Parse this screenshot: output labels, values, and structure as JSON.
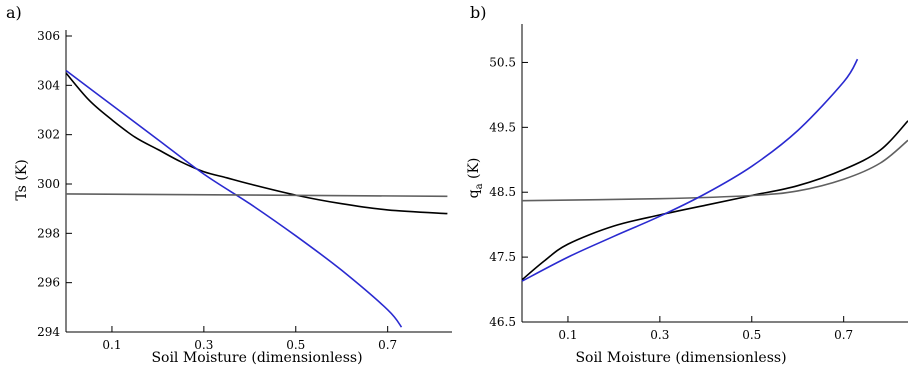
{
  "chart_data": [
    {
      "type": "line",
      "panel_label": "a)",
      "xlabel": "Soil Moisture (dimensionless)",
      "ylabel": "Ts (K)",
      "xlim": [
        0.0,
        0.84
      ],
      "ylim": [
        294,
        306
      ],
      "xticks": [
        "0.1",
        "0.3",
        "0.5",
        "0.7"
      ],
      "yticks": [
        "294",
        "296",
        "298",
        "300",
        "302",
        "304",
        "306"
      ],
      "xtick_values": [
        0.1,
        0.3,
        0.5,
        0.7
      ],
      "ytick_values": [
        294,
        296,
        298,
        300,
        302,
        304,
        306
      ],
      "series": [
        {
          "color": "#000000",
          "x": [
            0.0,
            0.05,
            0.1,
            0.15,
            0.2,
            0.25,
            0.3,
            0.35,
            0.4,
            0.5,
            0.6,
            0.7,
            0.83
          ],
          "y": [
            304.5,
            303.4,
            302.6,
            301.9,
            301.4,
            300.9,
            300.5,
            300.25,
            300.0,
            299.55,
            299.2,
            298.95,
            298.8
          ]
        },
        {
          "color": "#2a2ad0",
          "x": [
            0.0,
            0.1,
            0.2,
            0.3,
            0.4,
            0.5,
            0.6,
            0.7,
            0.73
          ],
          "y": [
            304.6,
            303.2,
            301.8,
            300.4,
            299.2,
            297.9,
            296.5,
            294.9,
            294.2
          ]
        },
        {
          "color": "#606060",
          "x": [
            0.0,
            0.83
          ],
          "y": [
            299.6,
            299.5
          ]
        }
      ]
    },
    {
      "type": "line",
      "panel_label": "b)",
      "xlabel": "Soil Moisture (dimensionless)",
      "ylabel": "qa (K)",
      "ylabel_main": "q",
      "ylabel_sub": "a",
      "ylabel_unit": " (K)",
      "xlim": [
        0.0,
        0.84
      ],
      "ylim": [
        46.5,
        51.0
      ],
      "xticks": [
        "0.1",
        "0.3",
        "0.5",
        "0.7"
      ],
      "yticks": [
        "46.5",
        "47.5",
        "48.5",
        "49.5",
        "50.5"
      ],
      "xtick_values": [
        0.1,
        0.3,
        0.5,
        0.7
      ],
      "ytick_values": [
        46.5,
        47.5,
        48.5,
        49.5,
        50.5
      ],
      "series": [
        {
          "color": "#000000",
          "x": [
            0.0,
            0.05,
            0.1,
            0.2,
            0.3,
            0.4,
            0.5,
            0.6,
            0.7,
            0.78,
            0.84
          ],
          "y": [
            47.15,
            47.45,
            47.7,
            47.98,
            48.15,
            48.3,
            48.45,
            48.6,
            48.85,
            49.15,
            49.6
          ]
        },
        {
          "color": "#606060",
          "x": [
            0.0,
            0.3,
            0.5,
            0.6,
            0.7,
            0.78,
            0.84
          ],
          "y": [
            48.37,
            48.4,
            48.45,
            48.52,
            48.7,
            48.95,
            49.3
          ]
        },
        {
          "color": "#2a2ad0",
          "x": [
            0.0,
            0.1,
            0.2,
            0.3,
            0.4,
            0.5,
            0.6,
            0.7,
            0.73
          ],
          "y": [
            47.13,
            47.5,
            47.82,
            48.13,
            48.48,
            48.9,
            49.45,
            50.2,
            50.55
          ]
        }
      ]
    }
  ]
}
